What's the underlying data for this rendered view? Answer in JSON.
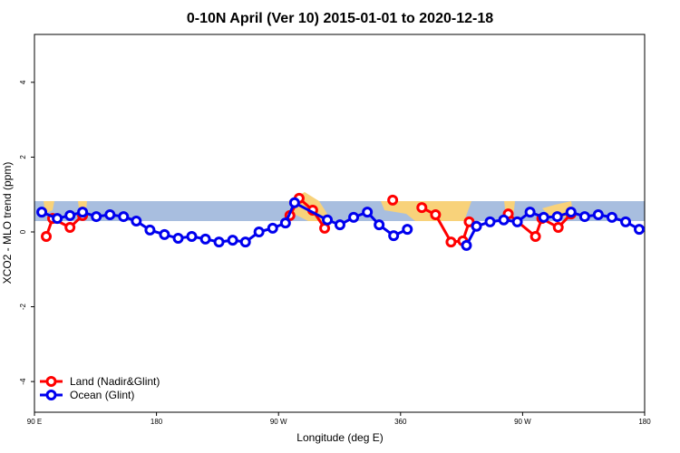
{
  "chart_data": {
    "type": "line",
    "title": "0-10N April (Ver 10)   2015-01-01 to 2020-12-18",
    "x_label": "Longitude (deg E)",
    "y_label": "XCO2 - MLO trend (ppm)",
    "xlim": [
      90,
      540
    ],
    "ylim": [
      -4.82,
      5.28
    ],
    "xticks": [
      {
        "value": 90,
        "label": "90 E"
      },
      180,
      {
        "value": 270,
        "label": "90 W"
      },
      360,
      {
        "value": 450,
        "label": "90 W"
      },
      {
        "value": 540,
        "label": "180"
      }
    ],
    "yticks": [
      -4,
      -2,
      0,
      2,
      4
    ],
    "legend": "bottom-left",
    "series": [
      {
        "name": "Land (Nadir&Glint)",
        "color": "#ff0000",
        "x": [
          98.7,
          103.4,
          116.2,
          125.5,
          null,
          278.4,
          285.2,
          295.2,
          304,
          null,
          354.2,
          null,
          375.7,
          385.8,
          397.2,
          405.9,
          410.6,
          null,
          439.4,
          459.5,
          464.2,
          476.3,
          485.7
        ],
        "values": [
          -0.12,
          0.36,
          0.12,
          0.44,
          null,
          0.44,
          0.9,
          0.58,
          0.1,
          null,
          0.85,
          null,
          0.65,
          0.46,
          -0.27,
          -0.24,
          0.27,
          null,
          0.48,
          -0.12,
          0.36,
          0.12,
          0.48
        ]
      },
      {
        "name": "Ocean (Glint)",
        "color": "#0000ee",
        "x": [
          95.4,
          106.8,
          116.2,
          125.5,
          135.6,
          145.7,
          155.7,
          165.1,
          175.2,
          185.9,
          196,
          206,
          216.1,
          226.1,
          236.2,
          245.6,
          255.6,
          265.7,
          275.1,
          281.8,
          306,
          315.3,
          325.4,
          335.5,
          344.2,
          354.9,
          365,
          null,
          408.6,
          416,
          426,
          436.1,
          446.1,
          455.5,
          465.6,
          475.6,
          485.7,
          495.8,
          505.8,
          515.9,
          526,
          536
        ],
        "values": [
          0.53,
          0.36,
          0.44,
          0.53,
          0.41,
          0.46,
          0.41,
          0.29,
          0.05,
          -0.07,
          -0.17,
          -0.12,
          -0.19,
          -0.27,
          -0.22,
          -0.27,
          0,
          0.1,
          0.24,
          0.78,
          0.32,
          0.19,
          0.39,
          0.53,
          0.19,
          -0.1,
          0.07,
          null,
          -0.36,
          0.15,
          0.27,
          0.32,
          0.27,
          0.53,
          0.39,
          0.41,
          0.53,
          0.41,
          0.46,
          0.39,
          0.27,
          0.07
        ]
      }
    ]
  }
}
